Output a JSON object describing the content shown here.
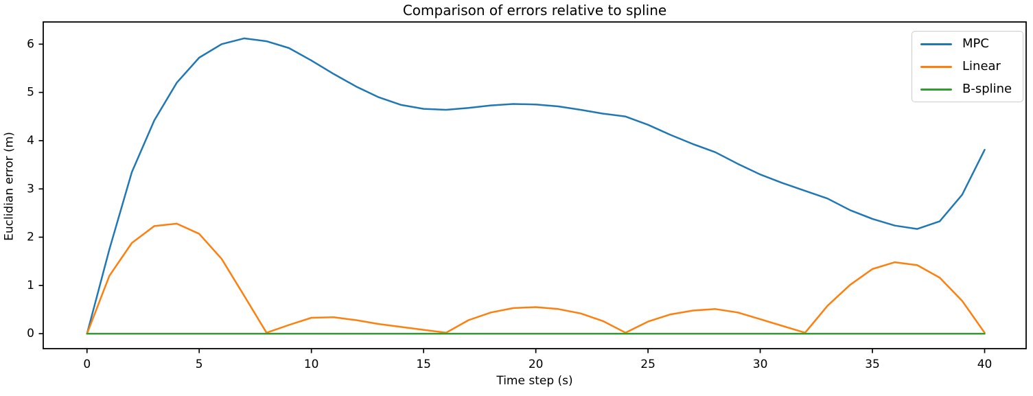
{
  "chart_data": {
    "type": "line",
    "title": "Comparison of errors relative to spline",
    "xlabel": "Time step (s)",
    "ylabel": "Euclidian error (m)",
    "grid": false,
    "legend_position": "upper right",
    "xlim": [
      -1.95,
      41.85
    ],
    "ylim": [
      -0.31,
      6.46
    ],
    "x_ticks": [
      0,
      5,
      10,
      15,
      20,
      25,
      30,
      35,
      40
    ],
    "y_ticks": [
      0,
      1,
      2,
      3,
      4,
      5,
      6
    ],
    "x": [
      0,
      1,
      2,
      3,
      4,
      5,
      6,
      7,
      8,
      9,
      10,
      11,
      12,
      13,
      14,
      15,
      16,
      17,
      18,
      19,
      20,
      21,
      22,
      23,
      24,
      25,
      26,
      27,
      28,
      29,
      30,
      31,
      32,
      33,
      34,
      35,
      36,
      37,
      38,
      39,
      40
    ],
    "series": [
      {
        "name": "MPC",
        "color": "#1f77b4",
        "values": [
          0.0,
          1.75,
          3.35,
          4.42,
          5.2,
          5.72,
          6.0,
          6.12,
          6.06,
          5.92,
          5.66,
          5.38,
          5.12,
          4.9,
          4.74,
          4.66,
          4.64,
          4.68,
          4.73,
          4.76,
          4.75,
          4.71,
          4.64,
          4.56,
          4.5,
          4.33,
          4.12,
          3.93,
          3.76,
          3.52,
          3.3,
          3.12,
          2.96,
          2.8,
          2.56,
          2.38,
          2.24,
          2.17,
          2.33,
          2.88,
          3.81
        ]
      },
      {
        "name": "Linear",
        "color": "#ff7f0e",
        "values": [
          0.0,
          1.2,
          1.88,
          2.23,
          2.28,
          2.07,
          1.55,
          0.79,
          0.02,
          0.18,
          0.33,
          0.34,
          0.28,
          0.2,
          0.14,
          0.08,
          0.02,
          0.28,
          0.44,
          0.53,
          0.55,
          0.51,
          0.42,
          0.26,
          0.02,
          0.25,
          0.4,
          0.48,
          0.51,
          0.44,
          0.3,
          0.16,
          0.02,
          0.58,
          1.01,
          1.34,
          1.48,
          1.42,
          1.16,
          0.68,
          0.02
        ]
      },
      {
        "name": "B-spline",
        "color": "#2ca02c",
        "values": [
          0,
          0,
          0,
          0,
          0,
          0,
          0,
          0,
          0,
          0,
          0,
          0,
          0,
          0,
          0,
          0,
          0,
          0,
          0,
          0,
          0,
          0,
          0,
          0,
          0,
          0,
          0,
          0,
          0,
          0,
          0,
          0,
          0,
          0,
          0,
          0,
          0,
          0,
          0,
          0,
          0
        ]
      }
    ]
  },
  "colors": {
    "background": "#ffffff",
    "spine": "#000000",
    "tick_text": "#000000",
    "legend_border": "#cccccc"
  }
}
